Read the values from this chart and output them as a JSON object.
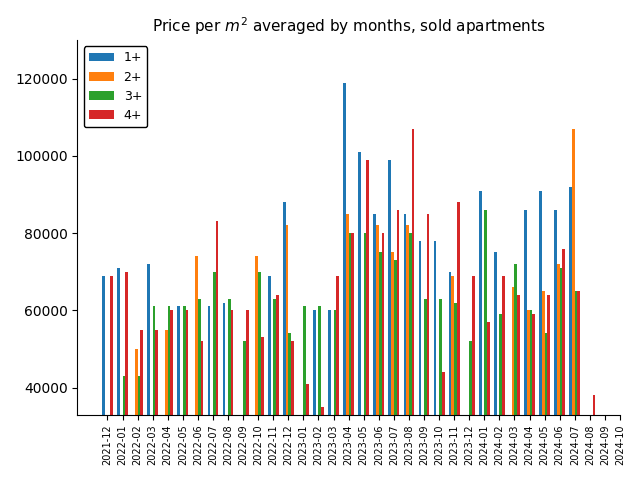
{
  "title": "Price per $m^2$ averaged by months, sold apartments",
  "categories": [
    "2021-12",
    "2022-01",
    "2022-02",
    "2022-03",
    "2022-04",
    "2022-05",
    "2022-06",
    "2022-07",
    "2022-08",
    "2022-09",
    "2022-10",
    "2022-11",
    "2022-12",
    "2023-01",
    "2023-02",
    "2023-03",
    "2023-04",
    "2023-05",
    "2023-06",
    "2023-07",
    "2023-08",
    "2023-09",
    "2023-10",
    "2023-11",
    "2023-12",
    "2024-01",
    "2024-02",
    "2024-03",
    "2024-04",
    "2024-05",
    "2024-06",
    "2024-07",
    "2024-08",
    "2024-09",
    "2024-10"
  ],
  "series_1p": [
    69000,
    71000,
    0,
    72000,
    0,
    61000,
    0,
    61000,
    62000,
    0,
    0,
    69000,
    88000,
    0,
    60000,
    60000,
    119000,
    101000,
    85000,
    99000,
    85000,
    78000,
    78000,
    70000,
    0,
    91000,
    75000,
    0,
    86000,
    91000,
    86000,
    92000,
    0,
    0,
    0
  ],
  "series_2p": [
    0,
    0,
    50000,
    0,
    55000,
    0,
    74000,
    0,
    0,
    0,
    74000,
    0,
    82000,
    0,
    0,
    0,
    85000,
    0,
    82000,
    75000,
    82000,
    0,
    0,
    69000,
    0,
    0,
    0,
    66000,
    60000,
    65000,
    72000,
    107000,
    0,
    0,
    0
  ],
  "series_3p": [
    0,
    43000,
    43000,
    61000,
    61000,
    61000,
    63000,
    70000,
    63000,
    52000,
    70000,
    63000,
    54000,
    61000,
    61000,
    60000,
    80000,
    80000,
    75000,
    73000,
    80000,
    63000,
    63000,
    62000,
    52000,
    86000,
    59000,
    72000,
    60000,
    54000,
    71000,
    65000,
    0,
    0,
    0
  ],
  "series_4p": [
    69000,
    70000,
    55000,
    55000,
    60000,
    60000,
    52000,
    83000,
    60000,
    60000,
    53000,
    64000,
    52000,
    41000,
    35000,
    69000,
    80000,
    99000,
    80000,
    86000,
    107000,
    85000,
    44000,
    88000,
    69000,
    57000,
    69000,
    64000,
    59000,
    64000,
    76000,
    65000,
    38000,
    0,
    0
  ],
  "color_1p": "#1f77b4",
  "color_2p": "#ff7f0e",
  "color_3p": "#2ca02c",
  "color_4p": "#d62728",
  "ylim_min": 33000,
  "ylim_max": 130000,
  "yticks": [
    40000,
    60000,
    80000,
    100000,
    120000
  ],
  "bar_width": 0.6
}
